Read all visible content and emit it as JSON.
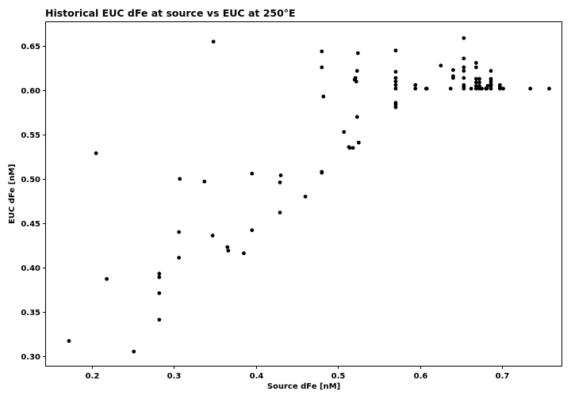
{
  "chart_data": {
    "type": "scatter",
    "title": "Historical EUC dFe at source vs EUC at 250°E",
    "xlabel": "Source dFe [nM]",
    "ylabel": "EUC dFe [nM]",
    "xlim": [
      0.144,
      0.772
    ],
    "ylim": [
      0.289,
      0.677
    ],
    "xticks": [
      0.2,
      0.3,
      0.4,
      0.5,
      0.6,
      0.7
    ],
    "xtick_labels": [
      "0.2",
      "0.3",
      "0.4",
      "0.5",
      "0.6",
      "0.7"
    ],
    "yticks": [
      0.3,
      0.35,
      0.4,
      0.45,
      0.5,
      0.55,
      0.6,
      0.65
    ],
    "ytick_labels": [
      "0.30",
      "0.35",
      "0.40",
      "0.45",
      "0.50",
      "0.55",
      "0.60",
      "0.65"
    ],
    "grid": false,
    "marker_color": "#000000",
    "series": [
      {
        "name": "EUC dFe",
        "points": [
          [
            0.172,
            0.317
          ],
          [
            0.205,
            0.529
          ],
          [
            0.218,
            0.387
          ],
          [
            0.251,
            0.305
          ],
          [
            0.282,
            0.341
          ],
          [
            0.282,
            0.371
          ],
          [
            0.282,
            0.389
          ],
          [
            0.282,
            0.393
          ],
          [
            0.306,
            0.411
          ],
          [
            0.306,
            0.44
          ],
          [
            0.307,
            0.5
          ],
          [
            0.337,
            0.497
          ],
          [
            0.347,
            0.436
          ],
          [
            0.348,
            0.655
          ],
          [
            0.365,
            0.423
          ],
          [
            0.366,
            0.419
          ],
          [
            0.385,
            0.416
          ],
          [
            0.395,
            0.442
          ],
          [
            0.395,
            0.506
          ],
          [
            0.429,
            0.462
          ],
          [
            0.429,
            0.496
          ],
          [
            0.43,
            0.504
          ],
          [
            0.46,
            0.48
          ],
          [
            0.48,
            0.507
          ],
          [
            0.48,
            0.508
          ],
          [
            0.48,
            0.626
          ],
          [
            0.48,
            0.644
          ],
          [
            0.482,
            0.593
          ],
          [
            0.507,
            0.553
          ],
          [
            0.513,
            0.536
          ],
          [
            0.514,
            0.535
          ],
          [
            0.518,
            0.535
          ],
          [
            0.52,
            0.612
          ],
          [
            0.521,
            0.614
          ],
          [
            0.522,
            0.61
          ],
          [
            0.523,
            0.622
          ],
          [
            0.523,
            0.57
          ],
          [
            0.524,
            0.642
          ],
          [
            0.525,
            0.541
          ],
          [
            0.57,
            0.645
          ],
          [
            0.57,
            0.621
          ],
          [
            0.57,
            0.614
          ],
          [
            0.57,
            0.61
          ],
          [
            0.57,
            0.606
          ],
          [
            0.57,
            0.602
          ],
          [
            0.57,
            0.586
          ],
          [
            0.57,
            0.584
          ],
          [
            0.57,
            0.581
          ],
          [
            0.594,
            0.606
          ],
          [
            0.594,
            0.602
          ],
          [
            0.607,
            0.602
          ],
          [
            0.608,
            0.602
          ],
          [
            0.625,
            0.628
          ],
          [
            0.637,
            0.602
          ],
          [
            0.64,
            0.623
          ],
          [
            0.64,
            0.616
          ],
          [
            0.64,
            0.614
          ],
          [
            0.653,
            0.659
          ],
          [
            0.653,
            0.636
          ],
          [
            0.653,
            0.626
          ],
          [
            0.653,
            0.622
          ],
          [
            0.653,
            0.614
          ],
          [
            0.653,
            0.606
          ],
          [
            0.653,
            0.604
          ],
          [
            0.653,
            0.602
          ],
          [
            0.662,
            0.602
          ],
          [
            0.668,
            0.631
          ],
          [
            0.668,
            0.626
          ],
          [
            0.668,
            0.613
          ],
          [
            0.668,
            0.609
          ],
          [
            0.668,
            0.605
          ],
          [
            0.668,
            0.602
          ],
          [
            0.672,
            0.613
          ],
          [
            0.672,
            0.609
          ],
          [
            0.672,
            0.605
          ],
          [
            0.672,
            0.602
          ],
          [
            0.675,
            0.602
          ],
          [
            0.68,
            0.602
          ],
          [
            0.681,
            0.602
          ],
          [
            0.682,
            0.605
          ],
          [
            0.686,
            0.622
          ],
          [
            0.686,
            0.613
          ],
          [
            0.686,
            0.61
          ],
          [
            0.686,
            0.607
          ],
          [
            0.686,
            0.605
          ],
          [
            0.686,
            0.602
          ],
          [
            0.697,
            0.606
          ],
          [
            0.697,
            0.604
          ],
          [
            0.697,
            0.602
          ],
          [
            0.701,
            0.602
          ],
          [
            0.734,
            0.602
          ],
          [
            0.757,
            0.602
          ]
        ]
      }
    ]
  }
}
